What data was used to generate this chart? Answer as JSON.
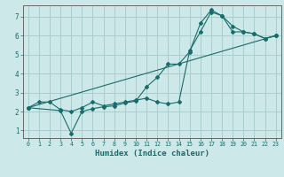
{
  "title": "",
  "xlabel": "Humidex (Indice chaleur)",
  "bg_color": "#cce8e8",
  "grid_color": "#aacccc",
  "line_color": "#1a6b6b",
  "xlim": [
    -0.5,
    23.5
  ],
  "ylim": [
    0.6,
    7.6
  ],
  "yticks": [
    1,
    2,
    3,
    4,
    5,
    6,
    7
  ],
  "xticks": [
    0,
    1,
    2,
    3,
    4,
    5,
    6,
    7,
    8,
    9,
    10,
    11,
    12,
    13,
    14,
    15,
    16,
    17,
    18,
    19,
    20,
    21,
    22,
    23
  ],
  "line1_x": [
    0,
    1,
    2,
    3,
    4,
    5,
    6,
    7,
    8,
    9,
    10,
    11,
    12,
    13,
    14,
    15,
    16,
    17,
    18,
    19,
    20,
    21,
    22,
    23
  ],
  "line1_y": [
    2.2,
    2.5,
    2.5,
    2.1,
    2.0,
    2.2,
    2.5,
    2.3,
    2.4,
    2.5,
    2.6,
    2.7,
    2.5,
    2.4,
    2.5,
    5.2,
    6.2,
    7.25,
    7.05,
    6.2,
    6.2,
    6.1,
    5.85,
    6.0
  ],
  "line2_x": [
    0,
    3,
    4,
    5,
    6,
    7,
    8,
    9,
    10,
    11,
    12,
    13,
    14,
    15,
    16,
    17,
    18,
    19,
    20,
    21,
    22,
    23
  ],
  "line2_y": [
    2.2,
    2.05,
    0.85,
    2.0,
    2.15,
    2.25,
    2.3,
    2.45,
    2.55,
    3.3,
    3.8,
    4.5,
    4.5,
    5.15,
    6.65,
    7.35,
    7.05,
    6.5,
    6.2,
    6.1,
    5.85,
    6.0
  ],
  "line3_x": [
    0,
    23
  ],
  "line3_y": [
    2.2,
    6.0
  ]
}
